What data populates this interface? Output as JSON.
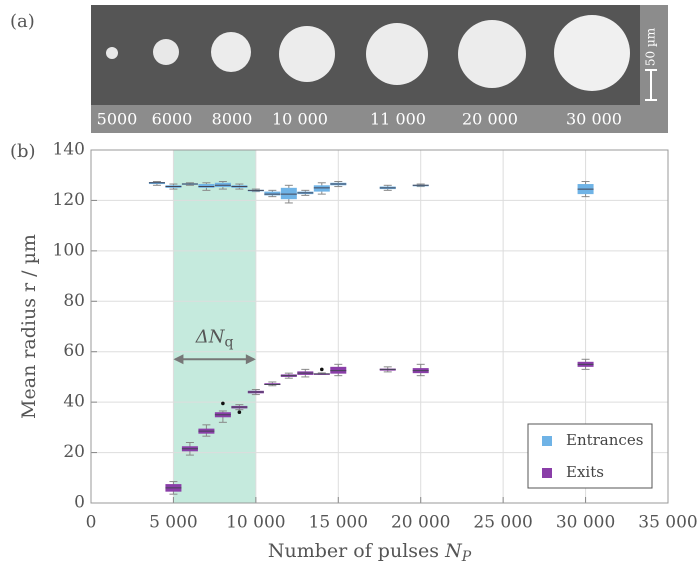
{
  "micrograph": {
    "label": "(a)",
    "scale": "50 µm",
    "labels": [
      "5000",
      "6000",
      "8000",
      "10 000",
      "11 000",
      "20 000",
      "30 000"
    ]
  },
  "chart_data": {
    "type": "box",
    "panel_label": "(b)",
    "y_label": "Mean radius r / µm",
    "x_label": {
      "text": "Number of pulses ",
      "var": "N",
      "sub": "P"
    },
    "annotation": {
      "text": "ΔN",
      "sub": "q",
      "span": [
        5000,
        10000
      ]
    },
    "shade_color": "#bfe8d9",
    "xlim": [
      0,
      35000
    ],
    "ylim": [
      0,
      140
    ],
    "xticks": [
      0,
      {
        "value": 5000,
        "label": "5 000"
      },
      {
        "value": 10000,
        "label": "10 000"
      },
      {
        "value": 15000,
        "label": "15 000"
      },
      {
        "value": 20000,
        "label": "20 000"
      },
      {
        "value": 25000,
        "label": "25 000"
      },
      {
        "value": 30000,
        "label": "30 000"
      },
      {
        "value": 35000,
        "label": "35 000"
      }
    ],
    "yticks": [
      0,
      20,
      40,
      60,
      80,
      100,
      120,
      140
    ],
    "grid": true,
    "legend": "lower right",
    "series": [
      {
        "name": "Entrances",
        "color": "#6fb3e6",
        "x": [
          4000,
          5000,
          6000,
          7000,
          8000,
          9000,
          10000,
          11000,
          12000,
          13000,
          14000,
          15000,
          18000,
          20000,
          30000
        ],
        "low": [
          126,
          124.5,
          126,
          124,
          124.5,
          124.5,
          123.5,
          121.5,
          119,
          122,
          122.5,
          125.5,
          124,
          125.5,
          121.5
        ],
        "q1": [
          126.5,
          125,
          126.2,
          125,
          125.3,
          125,
          123.8,
          122,
          120.5,
          122.5,
          123.5,
          126,
          124.5,
          125.8,
          122.5
        ],
        "median": [
          127,
          125.5,
          126.5,
          125.5,
          126,
          125.5,
          124,
          122.5,
          122.5,
          123,
          125,
          126.5,
          125,
          126,
          124.5
        ],
        "q3": [
          127.3,
          126,
          126.8,
          126.5,
          127,
          126,
          124.2,
          123.5,
          125,
          123.5,
          126,
          127,
          125.5,
          126.2,
          126.5
        ],
        "high": [
          127.5,
          126.5,
          127,
          127,
          127.5,
          126.5,
          124.5,
          124,
          126,
          124,
          127,
          127.5,
          126,
          126.5,
          127.5
        ]
      },
      {
        "name": "Exits",
        "color": "#8a3ea8",
        "x": [
          5000,
          6000,
          7000,
          8000,
          9000,
          10000,
          11000,
          12000,
          13000,
          14000,
          15000,
          18000,
          20000,
          30000
        ],
        "low": [
          3.5,
          19,
          26.5,
          32,
          37,
          43,
          46.5,
          49.5,
          50,
          51,
          50.5,
          52,
          50.5,
          53
        ],
        "q1": [
          4.5,
          20.5,
          27.5,
          34,
          37.5,
          43.5,
          46.8,
          50,
          50.8,
          51.1,
          51.3,
          52.5,
          51.5,
          54
        ],
        "median": [
          6,
          21.5,
          28.5,
          35,
          38,
          44,
          47,
          50.5,
          51.5,
          51.2,
          52.5,
          53,
          52.5,
          55
        ],
        "q3": [
          7.5,
          22.5,
          29.5,
          36,
          38.5,
          44.5,
          47.5,
          51,
          52.2,
          51.4,
          54,
          53.3,
          53.5,
          56
        ],
        "high": [
          8.5,
          24,
          31,
          36.5,
          39,
          45,
          48,
          51.5,
          53,
          51.6,
          55,
          54,
          55,
          57
        ]
      }
    ],
    "outliers": {
      "x": [
        8000,
        9000,
        14000
      ],
      "y": [
        39.5,
        36,
        53
      ]
    }
  }
}
